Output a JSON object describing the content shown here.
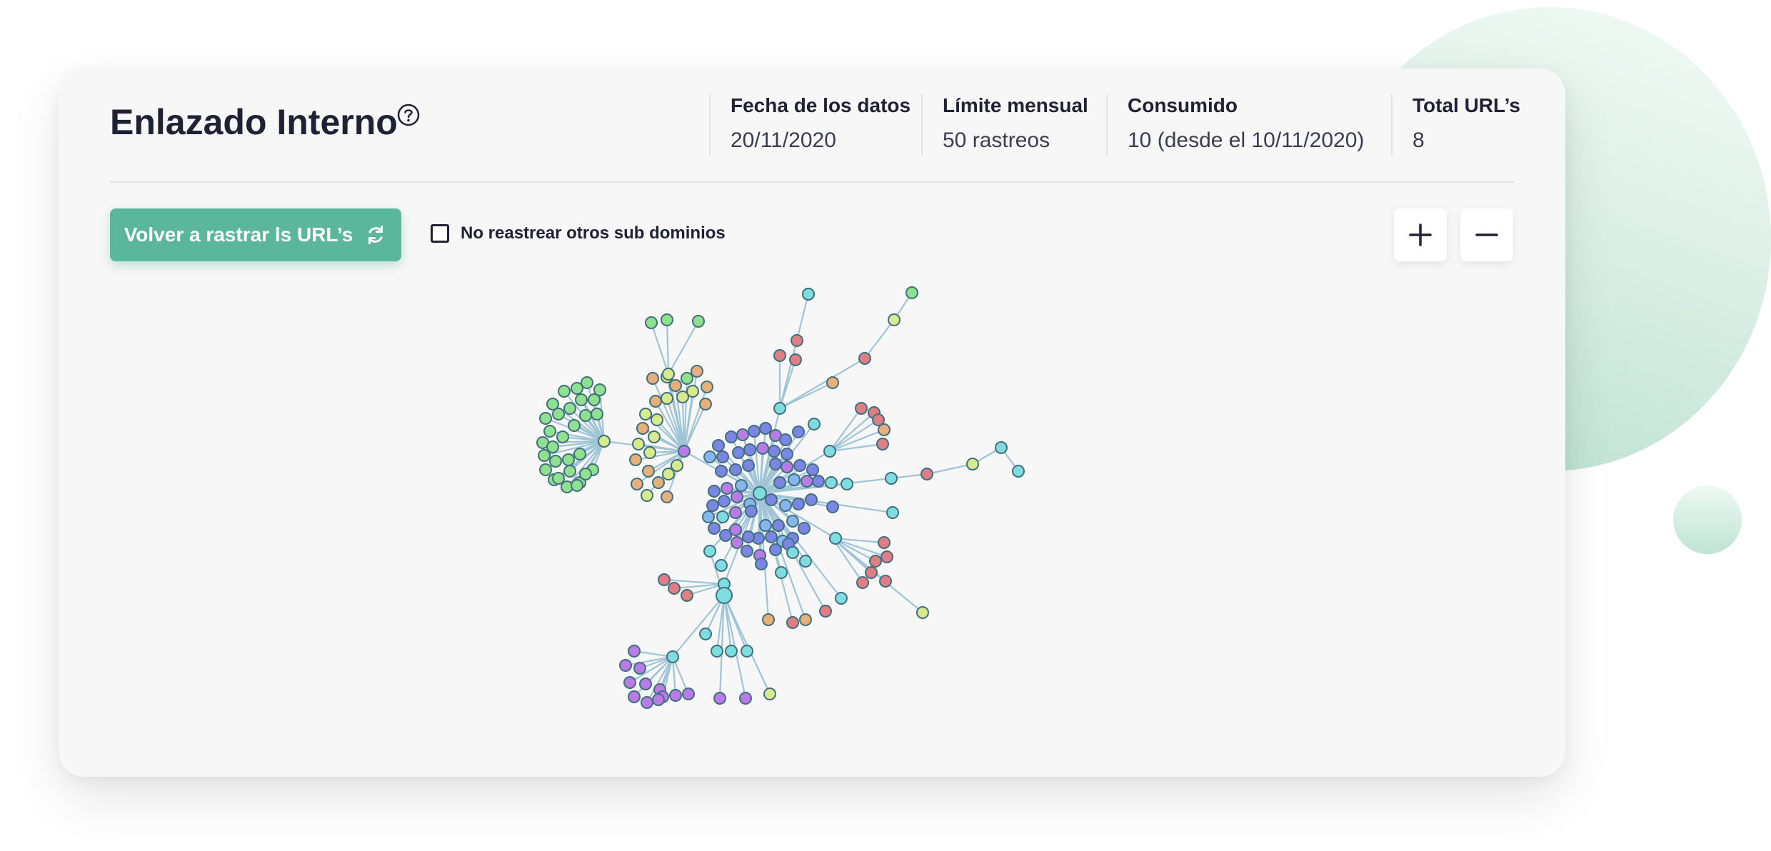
{
  "header": {
    "title": "Enlazado Interno",
    "help_icon": "question-circle-icon"
  },
  "stats": [
    {
      "label": "Fecha de los datos",
      "value": "20/11/2020"
    },
    {
      "label": "Límite mensual",
      "value": "50 rastreos"
    },
    {
      "label": "Consumido",
      "value": "10 (desde el 10/11/2020)"
    },
    {
      "label": "Total URL’s",
      "value": "8"
    }
  ],
  "toolbar": {
    "recrawl_label": "Volver a rastrar ls URL’s",
    "recrawl_icon": "refresh-icon",
    "checkbox_label": "No reastrear otros sub dominios",
    "checkbox_checked": false,
    "zoom_in_icon": "plus-icon",
    "zoom_out_icon": "minus-icon"
  },
  "colors": {
    "accent": "#5bb79a",
    "edge": "#9fc4d6",
    "node_stroke": "#3f6f7f",
    "node_colors": [
      "#7b86e3",
      "#b97be6",
      "#7fdde0",
      "#8fe08f",
      "#d9ea8c",
      "#e6b07a",
      "#e07e86",
      "#86b6ee"
    ]
  }
}
